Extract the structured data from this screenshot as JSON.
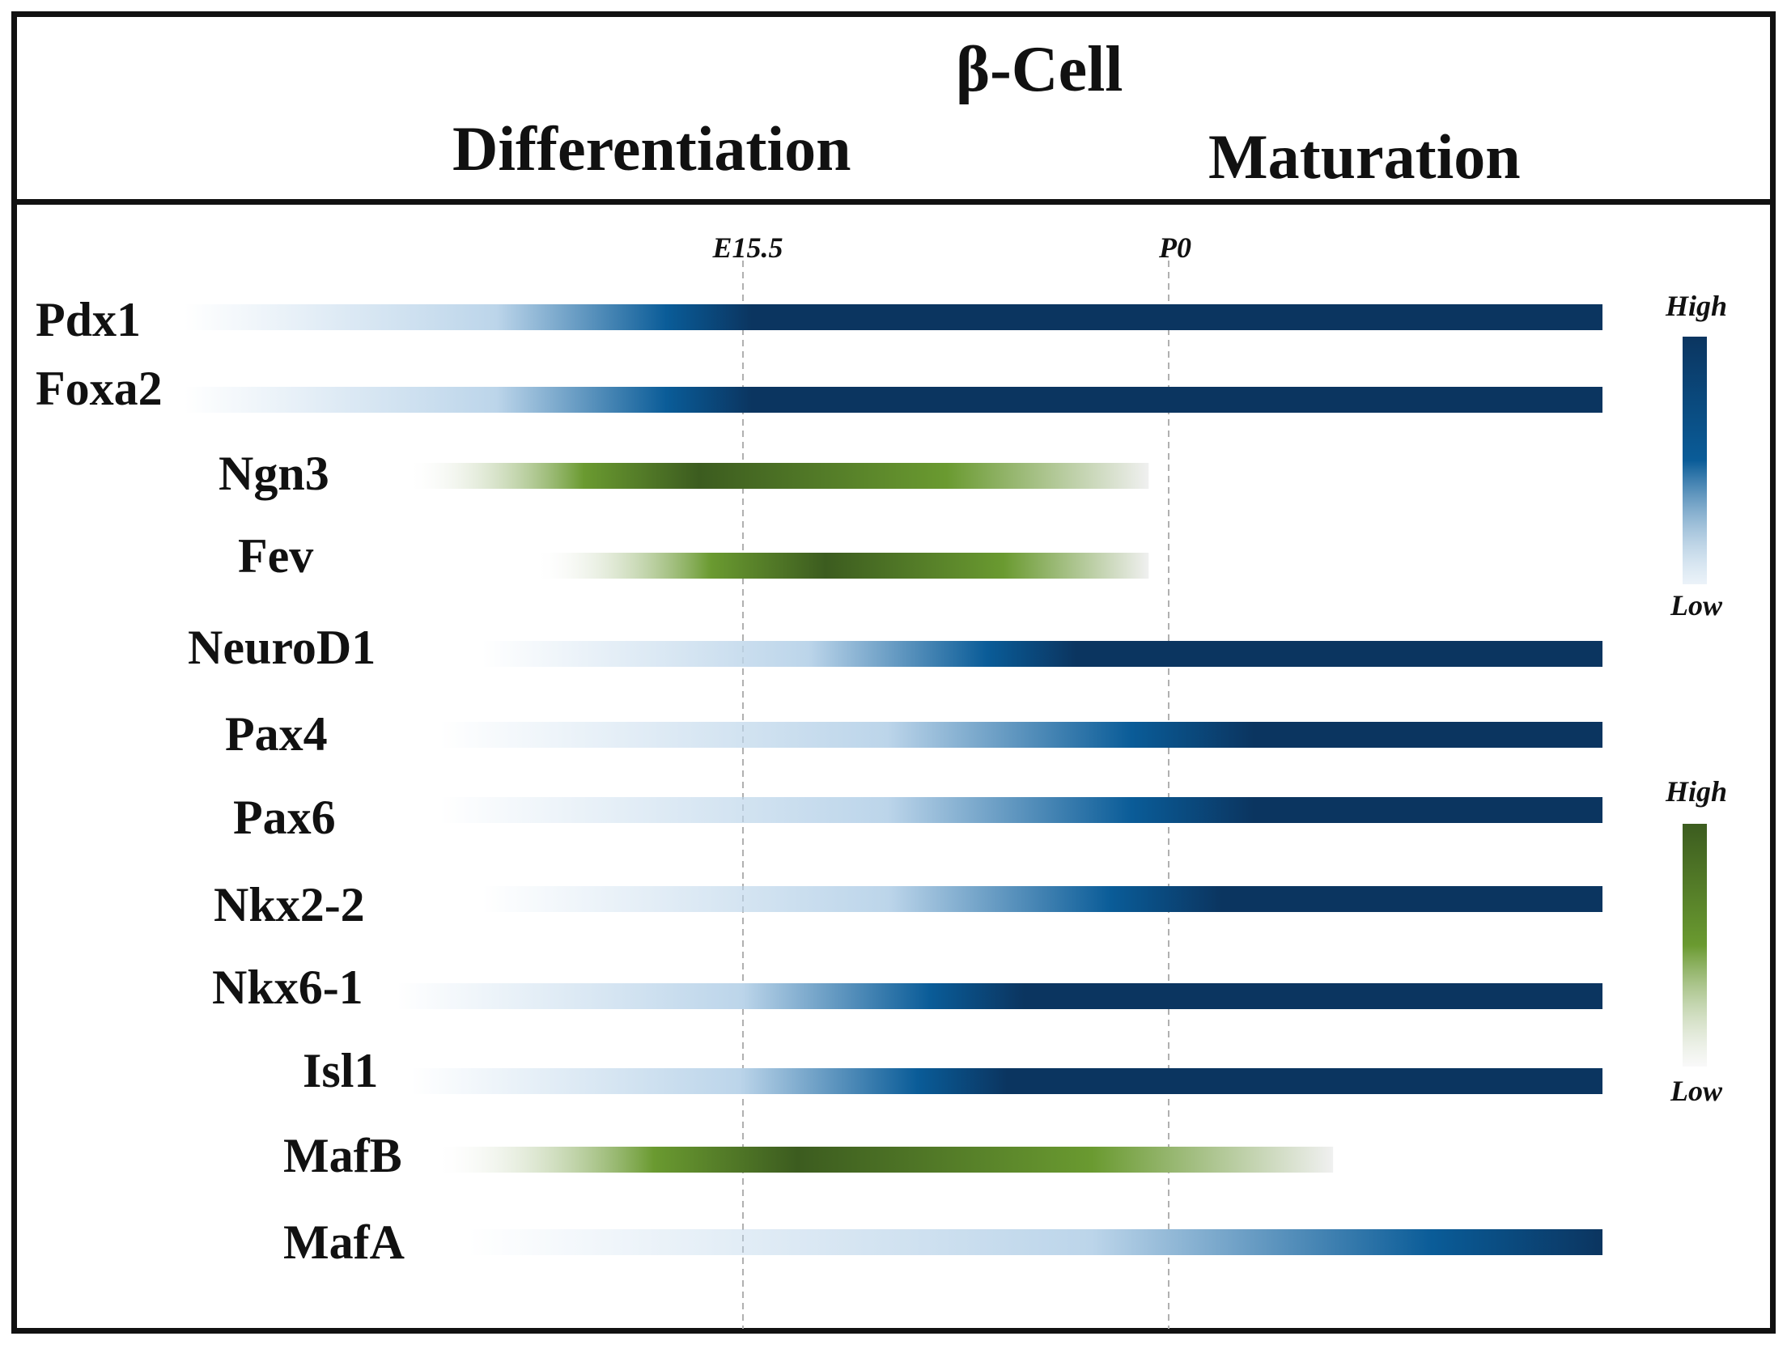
{
  "header": {
    "title": "β-Cell",
    "stage_left": "Differentiation",
    "stage_right": "Maturation"
  },
  "timeline_markers": [
    {
      "label": "E15.5"
    },
    {
      "label": "P0"
    }
  ],
  "colors": {
    "blue_high": "#0b3560",
    "blue_mid": "#0a5c98",
    "blue_low": "#bcd5ea",
    "green_high": "#3c5c1f",
    "green_mid": "#6a9a30",
    "green_low": "#f0f0f0"
  },
  "genes": [
    {
      "name": "Pdx1",
      "color": "blue",
      "start": 0.0,
      "end": 1.0,
      "peak": 0.4
    },
    {
      "name": "Foxa2",
      "color": "blue",
      "start": 0.0,
      "end": 1.0,
      "peak": 0.4
    },
    {
      "name": "Ngn3",
      "color": "green",
      "start": 0.16,
      "end": 0.68,
      "peak": 0.39
    },
    {
      "name": "Fev",
      "color": "green",
      "start": 0.25,
      "end": 0.68,
      "peak": 0.47
    },
    {
      "name": "NeuroD1",
      "color": "blue",
      "start": 0.21,
      "end": 1.0,
      "peak": 0.53
    },
    {
      "name": "Pax4",
      "color": "blue",
      "start": 0.18,
      "end": 1.0,
      "peak": 0.7
    },
    {
      "name": "Pax6",
      "color": "blue",
      "start": 0.18,
      "end": 1.0,
      "peak": 0.7
    },
    {
      "name": "Nkx2-2",
      "color": "blue",
      "start": 0.21,
      "end": 1.0,
      "peak": 0.66
    },
    {
      "name": "Nkx6-1",
      "color": "blue",
      "start": 0.15,
      "end": 1.0,
      "peak": 0.52
    },
    {
      "name": "Isl1",
      "color": "blue",
      "start": 0.16,
      "end": 1.0,
      "peak": 0.5
    },
    {
      "name": "MafB",
      "color": "green",
      "start": 0.18,
      "end": 0.81,
      "peak": 0.4
    },
    {
      "name": "MafA",
      "color": "blue",
      "start": 0.2,
      "end": 1.0,
      "peak": 1.0
    }
  ],
  "legend": {
    "blue": {
      "high_label": "High",
      "low_label": "Low"
    },
    "green": {
      "high_label": "High",
      "low_label": "Low"
    }
  }
}
